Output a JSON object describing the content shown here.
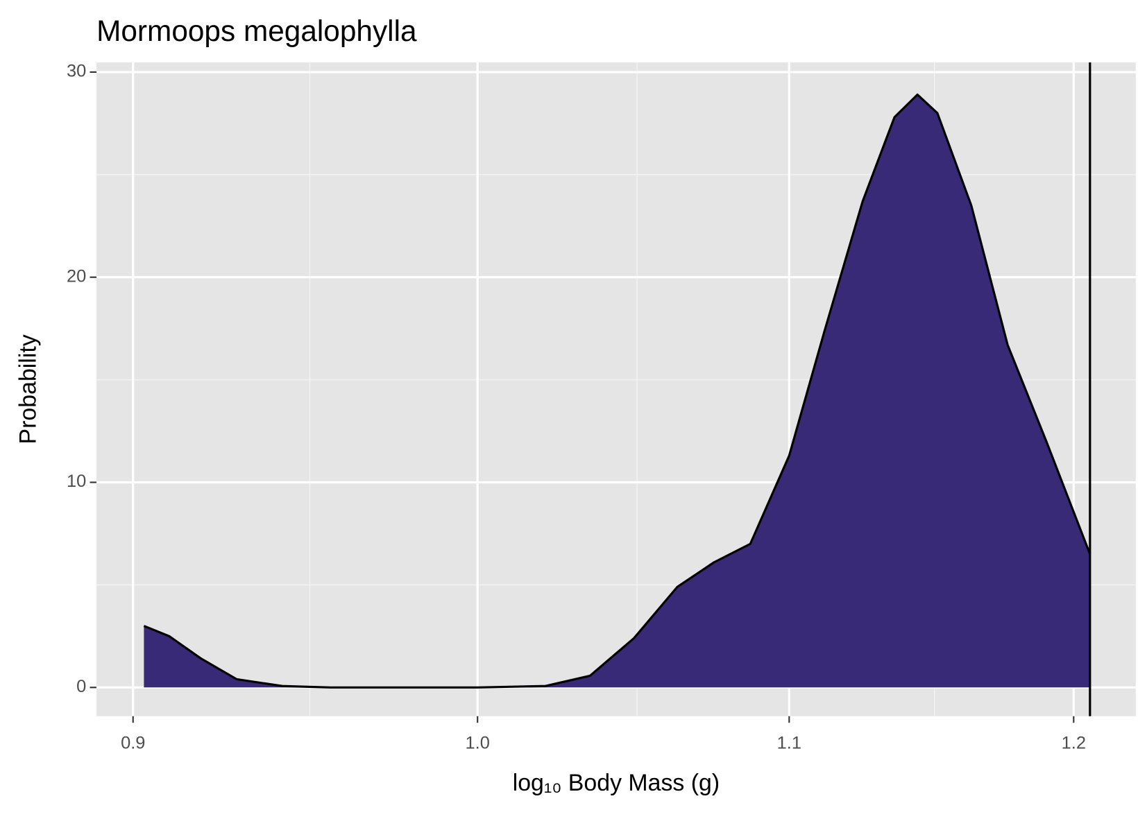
{
  "chart_data": {
    "type": "density",
    "title": "Mormoops megalophylla",
    "xlabel": "log₁₀ Body Mass (g)",
    "ylabel": "Probability",
    "x": [
      0.903,
      0.91,
      0.919,
      0.929,
      0.942,
      0.956,
      1.0,
      1.021,
      1.035,
      1.049,
      1.063,
      1.075,
      1.087,
      1.1,
      1.112,
      1.125,
      1.136,
      1.144,
      1.151,
      1.163,
      1.176,
      1.19,
      1.206
    ],
    "values": [
      3.0,
      2.5,
      1.4,
      0.4,
      0.07,
      0,
      0,
      0.07,
      0.57,
      2.4,
      4.9,
      6.1,
      7.0,
      11.3,
      17.4,
      23.7,
      27.8,
      28.9,
      28.0,
      23.5,
      16.7,
      12.0,
      6.5
    ],
    "color": "#382a76",
    "log_x": true,
    "grid": true,
    "xlim": [
      0.89,
      1.223
    ],
    "xticks": [
      0.9,
      {
        "value": 1.0,
        "label": "1.0"
      },
      1.1,
      1.2
    ],
    "xminor": [
      0.95,
      1.05,
      1.15
    ],
    "ylim": [
      -1.4,
      30.47
    ],
    "yticks": [
      0,
      10,
      20,
      30
    ],
    "yminor": [
      5,
      15,
      25
    ],
    "vline": 1.206
  }
}
